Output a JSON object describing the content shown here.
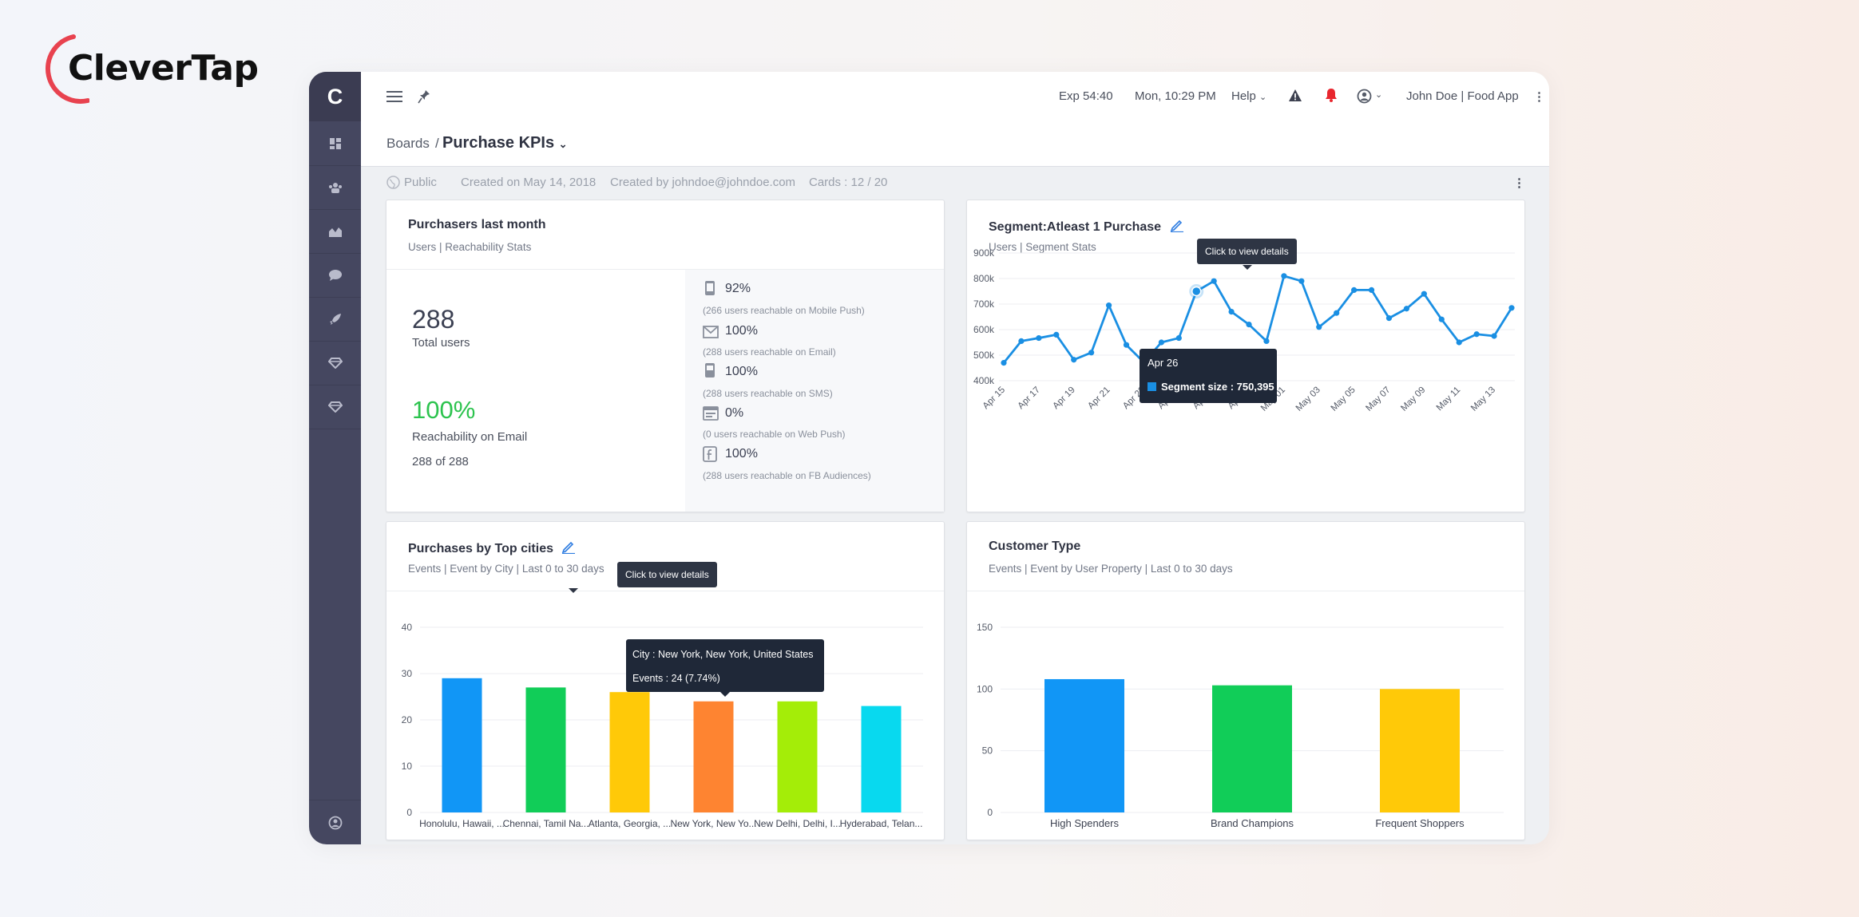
{
  "brand": {
    "name": "CleverTap",
    "accent": "#e8424f"
  },
  "app": {
    "logo_letter": "C"
  },
  "sidebar": {
    "items": [
      {
        "icon": "dashboard-icon"
      },
      {
        "icon": "people-icon"
      },
      {
        "icon": "analytics-icon"
      },
      {
        "icon": "chat-icon"
      },
      {
        "icon": "rocket-icon"
      },
      {
        "icon": "diamond-icon"
      },
      {
        "icon": "diamond-alt-icon"
      }
    ],
    "bottom_icon": "account-icon"
  },
  "topbar": {
    "exp": "Exp 54:40",
    "datetime": "Mon, 10:29 PM",
    "help": "Help",
    "user": "John Doe | Food App"
  },
  "breadcrumb": {
    "root": "Boards",
    "separator": "/",
    "title": "Purchase KPIs"
  },
  "board_meta": {
    "visibility": "Public",
    "created_on": "Created on May 14, 2018",
    "created_by": "Created by johndoe@johndoe.com",
    "cards": "Cards : 12 / 20"
  },
  "purchasers": {
    "title": "Purchasers last month",
    "subtitle": "Users | Reachability Stats",
    "total": "288",
    "total_label": "Total users",
    "email_pct": "100%",
    "email_label": "Reachability on Email",
    "email_count": "288 of 288",
    "reach": [
      {
        "icon": "mobile-push-icon",
        "pct": "92%",
        "desc": "(266 users reachable on Mobile Push)"
      },
      {
        "icon": "email-icon",
        "pct": "100%",
        "desc": "(288 users reachable on Email)"
      },
      {
        "icon": "sms-icon",
        "pct": "100%",
        "desc": "(288 users reachable on SMS)"
      },
      {
        "icon": "web-push-icon",
        "pct": "0%",
        "desc": "(0 users reachable on Web Push)"
      },
      {
        "icon": "facebook-icon",
        "pct": "100%",
        "desc": "(288 users reachable on FB Audiences)"
      }
    ]
  },
  "segment": {
    "title": "Segment:Atleast 1 Purchase",
    "subtitle": "Users | Segment Stats",
    "hint": "Click to view details",
    "tooltip_date": "Apr 26",
    "tooltip_label": "Segment size : 750,395"
  },
  "cities": {
    "title": "Purchases by Top cities",
    "subtitle": "Events | Event by City | Last 0 to 30 days",
    "hint": "Click to view details",
    "tooltip_city": "City : New York, New York, United States",
    "tooltip_events": "Events : 24 (7.74%)"
  },
  "customer": {
    "title": "Customer Type",
    "subtitle": "Events | Event by User Property | Last 0 to 30 days"
  },
  "chart_data": [
    {
      "type": "line",
      "title": "Segment:Atleast 1 Purchase",
      "x": [
        "Apr 15",
        "Apr 16",
        "Apr 17",
        "Apr 18",
        "Apr 19",
        "Apr 20",
        "Apr 21",
        "Apr 22",
        "Apr 23",
        "Apr 24",
        "Apr 25",
        "Apr 26",
        "Apr 27",
        "Apr 28",
        "Apr 29",
        "Apr 30",
        "May 01",
        "May 02",
        "May 03",
        "May 04",
        "May 05",
        "May 06",
        "May 07",
        "May 08",
        "May 09",
        "May 10",
        "May 11",
        "May 12",
        "May 13",
        "May 14"
      ],
      "x_tick_labels": [
        "Apr 15",
        "Apr 17",
        "Apr 19",
        "Apr 21",
        "Apr 23",
        "Apr 25",
        "Apr 27",
        "Apr 29",
        "May 01",
        "May 03",
        "May 05",
        "May 07",
        "May 09",
        "May 11",
        "May 13"
      ],
      "series": [
        {
          "values": [
            470000,
            555000,
            567000,
            580000,
            482000,
            510000,
            695000,
            540000,
            472000,
            550000,
            567000,
            750000,
            790000,
            670000,
            620000,
            555000,
            810000,
            790000,
            610000,
            665000,
            755000,
            755000,
            645000,
            682000,
            740000,
            640000,
            550000,
            582000,
            575000,
            685000
          ]
        }
      ],
      "ylim": [
        400000,
        900000
      ],
      "y_ticks": [
        "400k",
        "500k",
        "600k",
        "700k",
        "800k",
        "900k"
      ],
      "highlight_index": 11,
      "color": "#1a8fe3",
      "grid": true
    },
    {
      "type": "bar",
      "title": "Purchases by Top cities",
      "categories": [
        "Honolulu, Hawaii, ...",
        "Chennai, Tamil Na...",
        "Atlanta, Georgia, ...",
        "New York, New Yo...",
        "New Delhi, Delhi, I...",
        "Hyderabad, Telan..."
      ],
      "values": [
        29,
        27,
        26,
        24,
        24,
        23
      ],
      "colors": [
        "#1196f6",
        "#11cd58",
        "#ffc908",
        "#fe8431",
        "#a4ed08",
        "#08d9ef"
      ],
      "ylim": [
        0,
        40
      ],
      "y_ticks": [
        "0",
        "10",
        "20",
        "30",
        "40"
      ],
      "grid": true
    },
    {
      "type": "bar",
      "title": "Customer Type",
      "categories": [
        "High Spenders",
        "Brand Champions",
        "Frequent Shoppers"
      ],
      "values": [
        108,
        103,
        100
      ],
      "colors": [
        "#1196f6",
        "#11cd58",
        "#ffc908"
      ],
      "ylim": [
        0,
        150
      ],
      "y_ticks": [
        "0",
        "50",
        "100",
        "150"
      ],
      "grid": true
    }
  ]
}
